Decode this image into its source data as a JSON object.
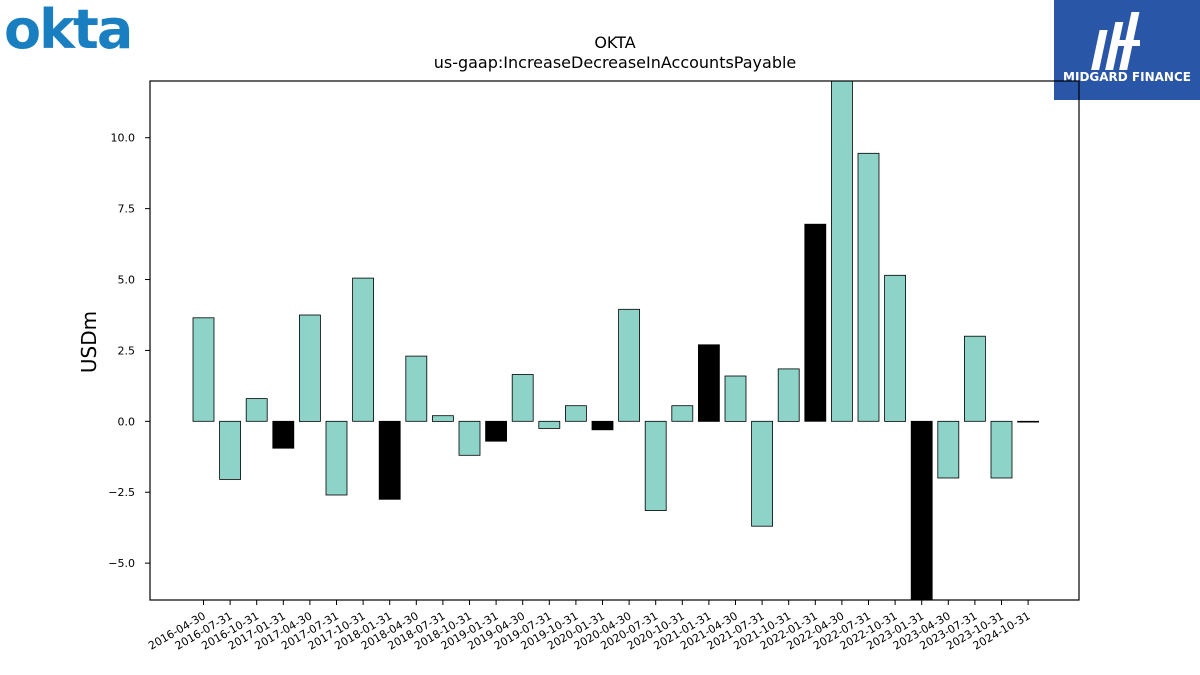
{
  "branding": {
    "okta_logo_text": "okta",
    "midgard_logo_text": "MIDGARD FINANCE",
    "okta_color": "#1a7fc1",
    "midgard_bg": "#2a56a8"
  },
  "chart_data": {
    "type": "bar",
    "title": "OKTA",
    "subtitle": "us-gaap:IncreaseDecreaseInAccountsPayable",
    "xlabel": "",
    "ylabel": "USDm",
    "ylim": [
      -6.3,
      12.0
    ],
    "yticks": [
      -5.0,
      -2.5,
      0.0,
      2.5,
      5.0,
      7.5,
      10.0
    ],
    "ytick_labels": [
      "−5.0",
      "−2.5",
      "0.0",
      "2.5",
      "5.0",
      "7.5",
      "10.0"
    ],
    "categories": [
      "2016-04-30",
      "2016-07-31",
      "2016-10-31",
      "2017-01-31",
      "2017-04-30",
      "2017-07-31",
      "2017-10-31",
      "2018-01-31",
      "2018-04-30",
      "2018-07-31",
      "2018-10-31",
      "2019-01-31",
      "2019-04-30",
      "2019-07-31",
      "2019-10-31",
      "2020-01-31",
      "2020-04-30",
      "2020-07-31",
      "2020-10-31",
      "2021-01-31",
      "2021-04-30",
      "2021-07-31",
      "2021-10-31",
      "2022-01-31",
      "2022-04-30",
      "2022-07-31",
      "2022-10-31",
      "2023-01-31",
      "2023-04-30",
      "2023-07-31",
      "2023-10-31",
      "2024-10-31"
    ],
    "values": [
      3.65,
      -2.05,
      0.8,
      -0.95,
      3.75,
      -2.6,
      5.05,
      -2.75,
      2.3,
      0.2,
      -1.2,
      -0.7,
      1.65,
      -0.25,
      0.55,
      -0.3,
      3.95,
      -3.15,
      0.55,
      2.7,
      1.6,
      -3.7,
      1.85,
      6.95,
      12.5,
      9.45,
      5.15,
      -6.8,
      -2.0,
      3.0,
      -2.0,
      0.0
    ],
    "colors": [
      "#8dd3c7",
      "#8dd3c7",
      "#8dd3c7",
      "#000000",
      "#8dd3c7",
      "#8dd3c7",
      "#8dd3c7",
      "#000000",
      "#8dd3c7",
      "#8dd3c7",
      "#8dd3c7",
      "#000000",
      "#8dd3c7",
      "#8dd3c7",
      "#8dd3c7",
      "#000000",
      "#8dd3c7",
      "#8dd3c7",
      "#8dd3c7",
      "#000000",
      "#8dd3c7",
      "#8dd3c7",
      "#8dd3c7",
      "#000000",
      "#8dd3c7",
      "#8dd3c7",
      "#8dd3c7",
      "#000000",
      "#8dd3c7",
      "#8dd3c7",
      "#8dd3c7",
      "#8dd3c7"
    ],
    "grid": false,
    "legend": "none"
  }
}
